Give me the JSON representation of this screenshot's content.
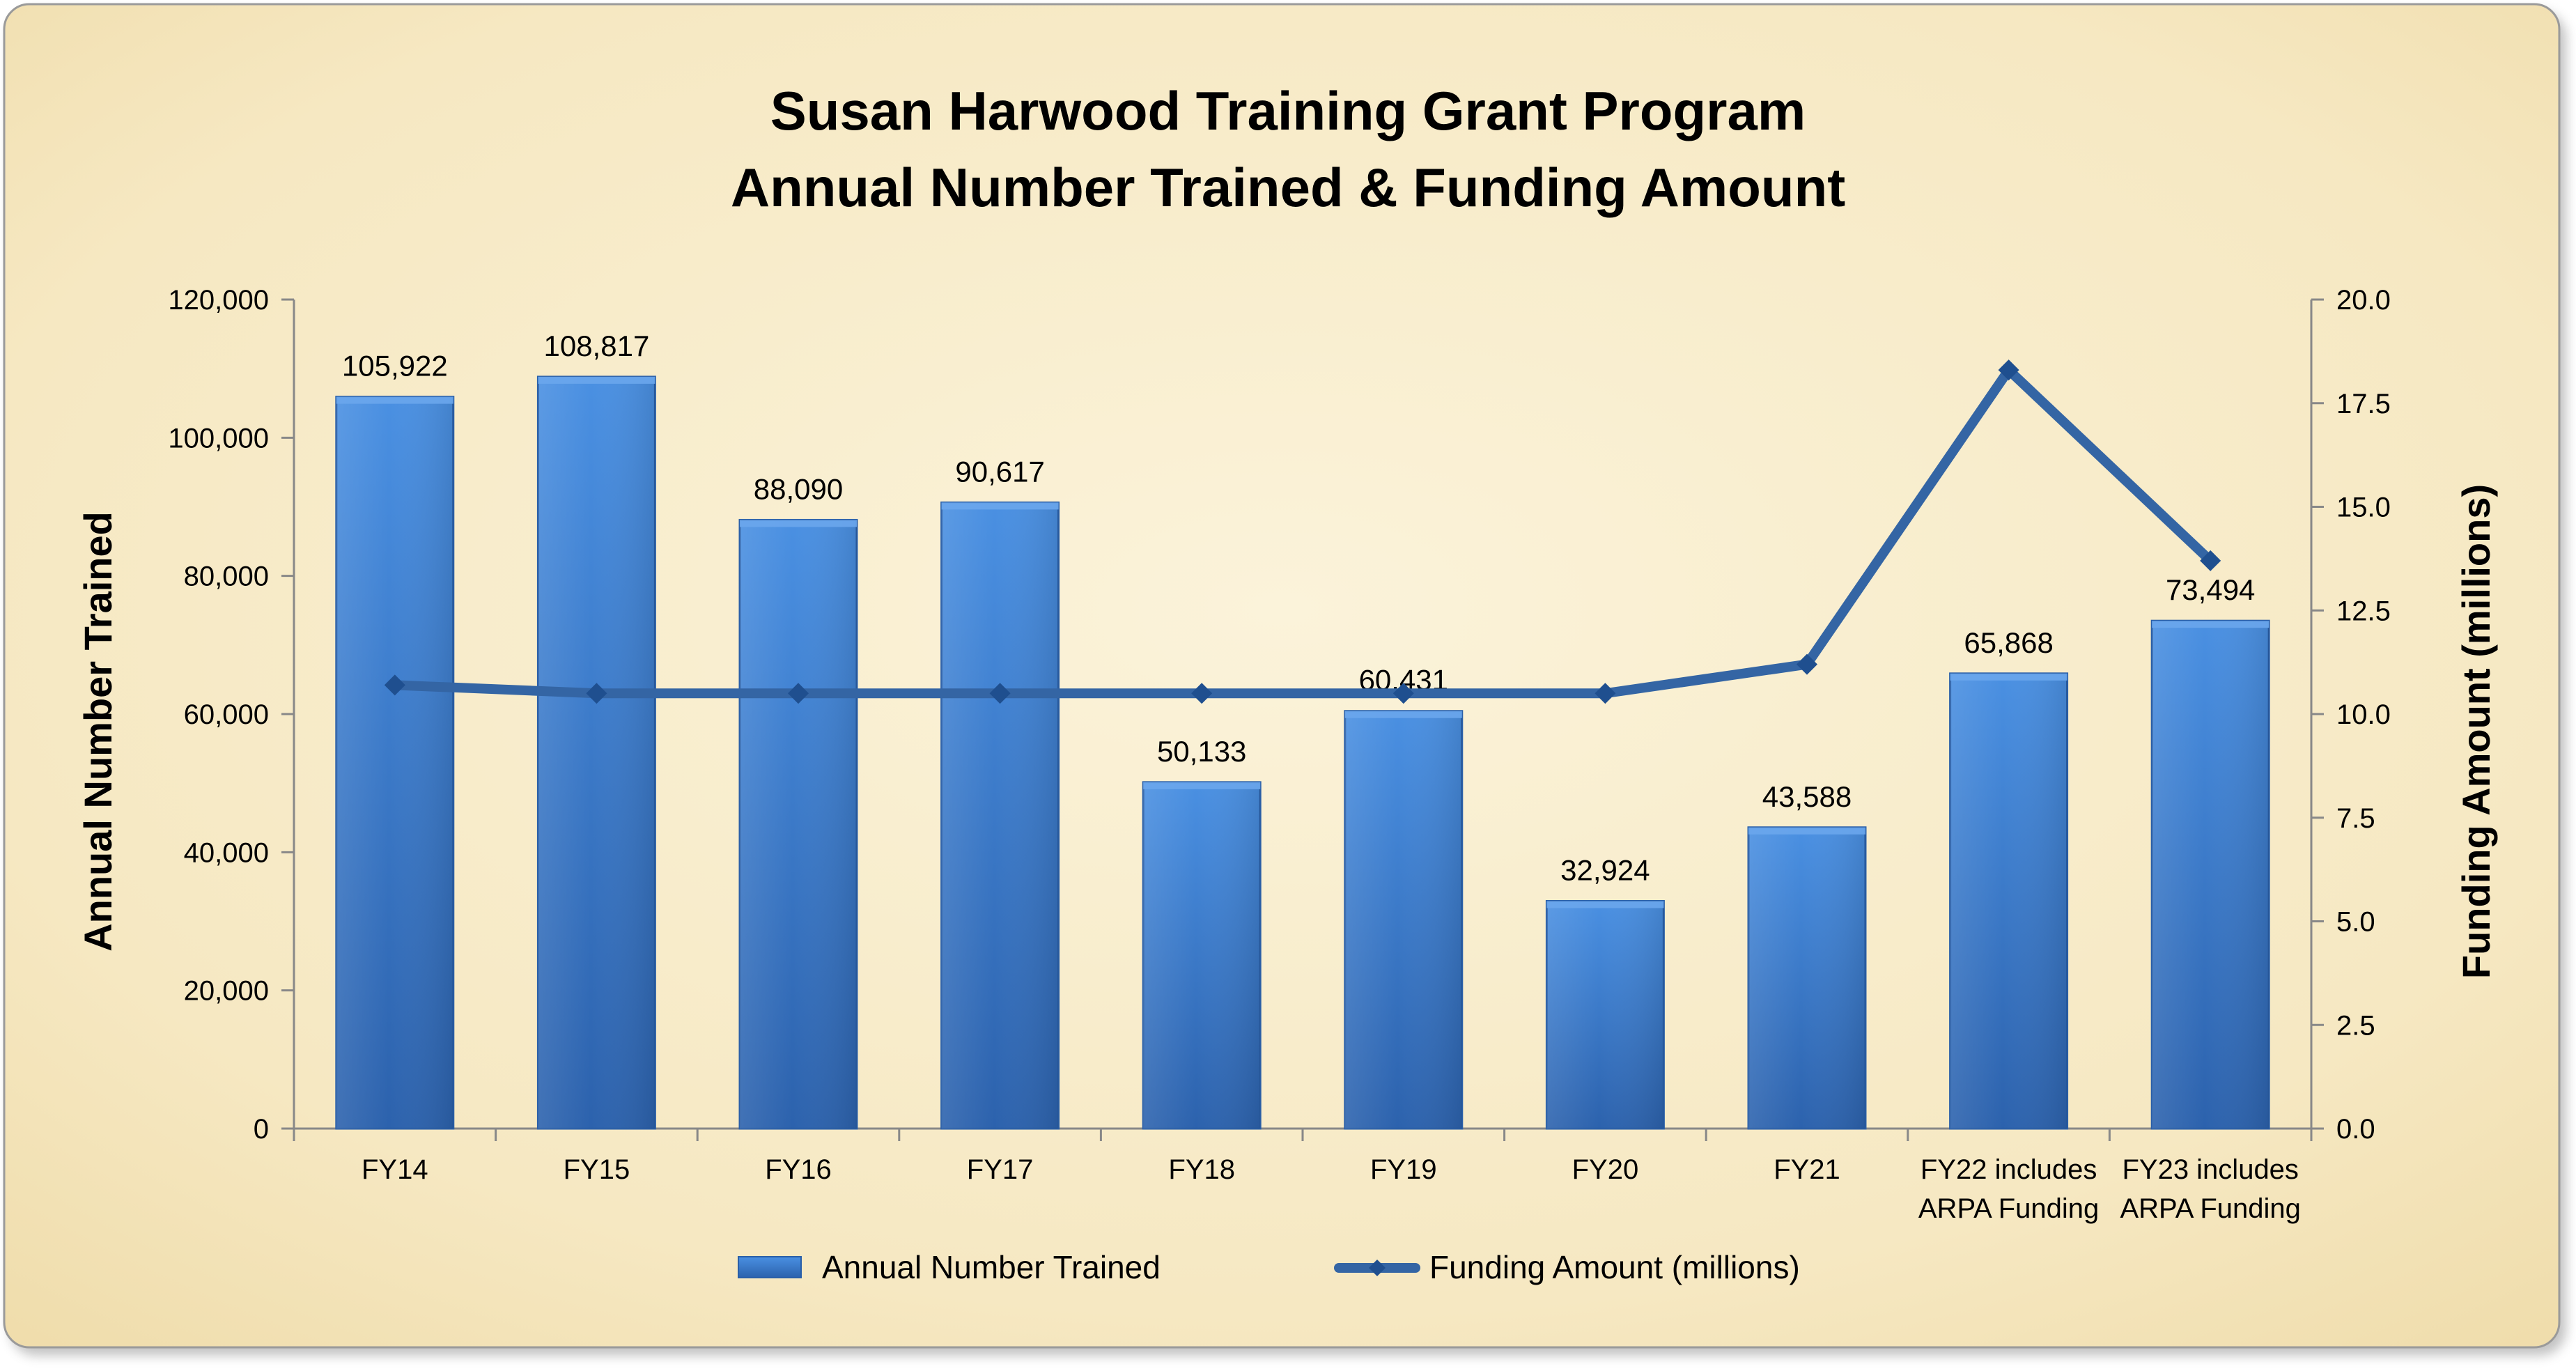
{
  "chart_data": {
    "type": "bar",
    "title_lines": [
      "Susan Harwood Training Grant Program",
      "Annual Number Trained & Funding Amount"
    ],
    "categories": [
      [
        "FY14"
      ],
      [
        "FY15"
      ],
      [
        "FY16"
      ],
      [
        "FY17"
      ],
      [
        "FY18"
      ],
      [
        "FY19"
      ],
      [
        "FY20"
      ],
      [
        "FY21"
      ],
      [
        "FY22 includes",
        "ARPA Funding"
      ],
      [
        "FY23 includes",
        "ARPA Funding"
      ]
    ],
    "series": [
      {
        "name": "Annual Number Trained",
        "type": "bar",
        "axis": "left",
        "values": [
          105922,
          108817,
          88090,
          90617,
          50133,
          60431,
          32924,
          43588,
          65868,
          73494
        ],
        "labels": [
          "105,922",
          "108,817",
          "88,090",
          "90,617",
          "50,133",
          "60,431",
          "32,924",
          "43,588",
          "65,868",
          "73,494"
        ]
      },
      {
        "name": "Funding Amount (millions)",
        "type": "line",
        "axis": "right",
        "values": [
          10.7,
          10.5,
          10.5,
          10.5,
          10.5,
          10.5,
          10.5,
          11.2,
          18.3,
          13.7
        ]
      }
    ],
    "ylabel": "Annual Number Trained",
    "y2label": "Funding Amount (millions)",
    "ylim": [
      0,
      120000
    ],
    "y2lim": [
      0,
      20
    ],
    "yticks": [
      "0",
      "20,000",
      "40,000",
      "60,000",
      "80,000",
      "100,000",
      "120,000"
    ],
    "y2ticks": [
      "0.0",
      "2.5",
      "5.0",
      "7.5",
      "10.0",
      "12.5",
      "15.0",
      "17.5",
      "20.0"
    ],
    "grid": false,
    "legend_position": "bottom",
    "colors": {
      "bar": "#3d7fd1",
      "bar_dark": "#2a5fa8",
      "line": "#3465a4",
      "background": "#f7ecc8",
      "text": "#000000"
    }
  }
}
